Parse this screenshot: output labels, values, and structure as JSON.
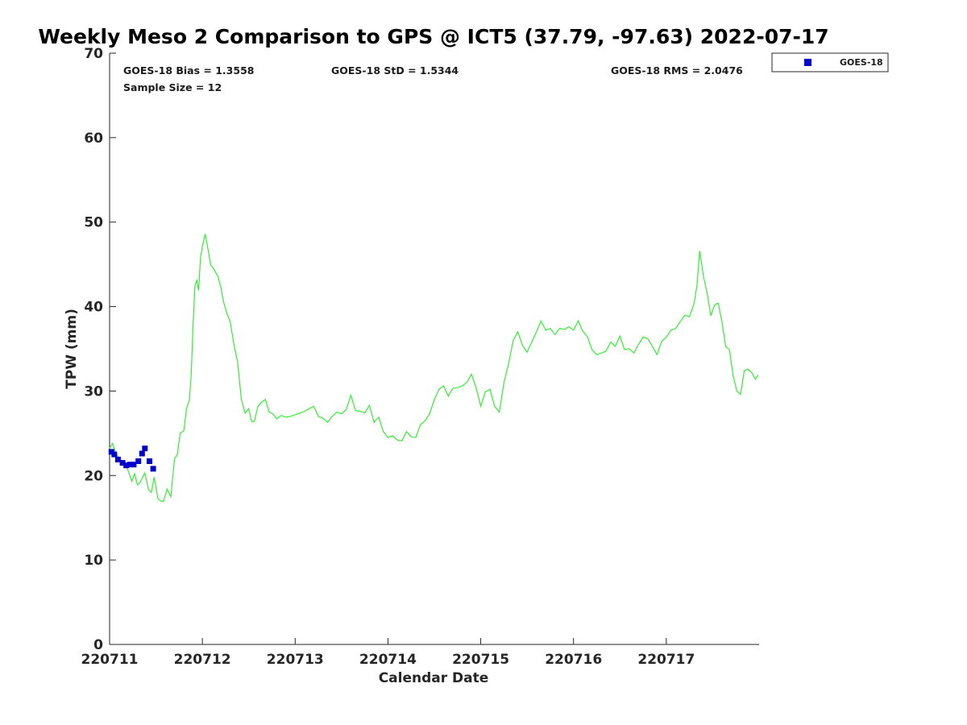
{
  "chart_data": {
    "type": "scatter",
    "title": "Weekly Meso 2 Comparison to GPS @ ICT5 (37.79, -97.63) 2022-07-17",
    "xlabel": "Calendar Date",
    "ylabel": "TPW (mm)",
    "xlim": [
      0,
      7
    ],
    "ylim": [
      0,
      70
    ],
    "x_ticks": [
      0,
      1,
      2,
      3,
      4,
      5,
      6
    ],
    "x_tick_labels": [
      "220711",
      "220712",
      "220713",
      "220714",
      "220715",
      "220716",
      "220717"
    ],
    "y_ticks": [
      0,
      10,
      20,
      30,
      40,
      50,
      60,
      70
    ],
    "y_tick_labels": [
      "0",
      "10",
      "20",
      "30",
      "40",
      "50",
      "60",
      "70"
    ],
    "grid": false,
    "legend_position": "outside-top-right",
    "stats": {
      "bias": "GOES-18 Bias = 1.3558",
      "std": "GOES-18 StD = 1.5344",
      "rms": "GOES-18 RMS = 2.0476",
      "sample": "Sample Size = 12"
    },
    "series": [
      {
        "name": "GOES-18",
        "kind": "scatter",
        "color": "#0000cc",
        "marker": "square",
        "x": [
          0.02,
          0.05,
          0.09,
          0.14,
          0.18,
          0.22,
          0.26,
          0.31,
          0.35,
          0.38,
          0.43,
          0.47
        ],
        "y": [
          22.8,
          22.5,
          21.9,
          21.5,
          21.2,
          21.3,
          21.3,
          21.7,
          22.6,
          23.2,
          21.7,
          20.8
        ]
      },
      {
        "kind": "line",
        "color": "#33ee33",
        "x": [
          0.0,
          0.03,
          0.07,
          0.12,
          0.17,
          0.2,
          0.24,
          0.27,
          0.3,
          0.33,
          0.38,
          0.42,
          0.45,
          0.48,
          0.52,
          0.55,
          0.58,
          0.62,
          0.66,
          0.7,
          0.73,
          0.76,
          0.8,
          0.83,
          0.86,
          0.88,
          0.9,
          0.92,
          0.94,
          0.96,
          0.98,
          1.0,
          1.03,
          1.06,
          1.09,
          1.12,
          1.14,
          1.17,
          1.2,
          1.23,
          1.27,
          1.3,
          1.34,
          1.38,
          1.42,
          1.46,
          1.5,
          1.53,
          1.56,
          1.6,
          1.64,
          1.68,
          1.72,
          1.76,
          1.8,
          1.85,
          1.9,
          1.95,
          2.0,
          2.05,
          2.1,
          2.15,
          2.2,
          2.25,
          2.3,
          2.35,
          2.4,
          2.45,
          2.5,
          2.55,
          2.6,
          2.65,
          2.7,
          2.75,
          2.8,
          2.85,
          2.9,
          2.95,
          3.0,
          3.05,
          3.1,
          3.15,
          3.2,
          3.25,
          3.3,
          3.35,
          3.4,
          3.45,
          3.5,
          3.55,
          3.6,
          3.65,
          3.7,
          3.75,
          3.8,
          3.85,
          3.9,
          3.95,
          4.0,
          4.05,
          4.1,
          4.15,
          4.2,
          4.25,
          4.3,
          4.35,
          4.4,
          4.45,
          4.5,
          4.55,
          4.6,
          4.65,
          4.7,
          4.75,
          4.8,
          4.85,
          4.9,
          4.95,
          5.0,
          5.05,
          5.1,
          5.15,
          5.2,
          5.25,
          5.3,
          5.35,
          5.4,
          5.45,
          5.5,
          5.55,
          5.6,
          5.65,
          5.7,
          5.75,
          5.8,
          5.85,
          5.9,
          5.95,
          6.0,
          6.05,
          6.1,
          6.15,
          6.2,
          6.25,
          6.3,
          6.33,
          6.36,
          6.4,
          6.44,
          6.48,
          6.52,
          6.56,
          6.6,
          6.64,
          6.68,
          6.72,
          6.76,
          6.8,
          6.84,
          6.88,
          6.92,
          6.96,
          6.99
        ],
        "y": [
          23.2,
          23.8,
          22.6,
          21.8,
          21.2,
          20.6,
          19.3,
          20.2,
          18.9,
          19.2,
          20.3,
          18.3,
          18.0,
          19.8,
          17.3,
          17.0,
          16.9,
          18.4,
          17.5,
          22.0,
          22.5,
          25.0,
          25.3,
          28.0,
          28.9,
          32.0,
          37.8,
          42.5,
          43.1,
          41.9,
          45.8,
          47.1,
          48.6,
          46.8,
          44.9,
          44.5,
          44.1,
          43.5,
          42.2,
          40.5,
          39.0,
          38.2,
          35.5,
          33.4,
          29.0,
          27.4,
          27.9,
          26.4,
          26.4,
          28.2,
          28.7,
          29.0,
          27.5,
          27.3,
          26.7,
          27.1,
          26.9,
          27.0,
          27.2,
          27.4,
          27.6,
          27.9,
          28.2,
          27.0,
          26.8,
          26.3,
          27.0,
          27.5,
          27.3,
          27.8,
          29.5,
          27.7,
          27.6,
          27.4,
          28.3,
          26.3,
          26.9,
          25.2,
          24.5,
          24.7,
          24.2,
          24.1,
          25.2,
          24.6,
          24.5,
          26.0,
          26.5,
          27.3,
          29.0,
          30.2,
          30.6,
          29.4,
          30.3,
          30.4,
          30.6,
          31.0,
          32.0,
          30.4,
          28.2,
          29.9,
          30.2,
          28.2,
          27.5,
          31.0,
          33.2,
          36.0,
          37.0,
          35.4,
          34.6,
          35.8,
          37.0,
          38.3,
          37.2,
          37.4,
          36.7,
          37.4,
          37.3,
          37.6,
          37.2,
          38.3,
          37.1,
          36.4,
          34.9,
          34.3,
          34.5,
          34.7,
          35.8,
          35.3,
          36.5,
          34.9,
          35.0,
          34.5,
          35.5,
          36.4,
          36.2,
          35.3,
          34.3,
          35.9,
          36.4,
          37.2,
          37.4,
          38.2,
          39.0,
          38.8,
          40.4,
          42.5,
          46.6,
          43.6,
          41.6,
          38.9,
          40.2,
          40.4,
          38.2,
          35.3,
          34.9,
          31.8,
          30.0,
          29.6,
          32.4,
          32.6,
          32.2,
          31.4,
          31.9
        ]
      }
    ]
  }
}
